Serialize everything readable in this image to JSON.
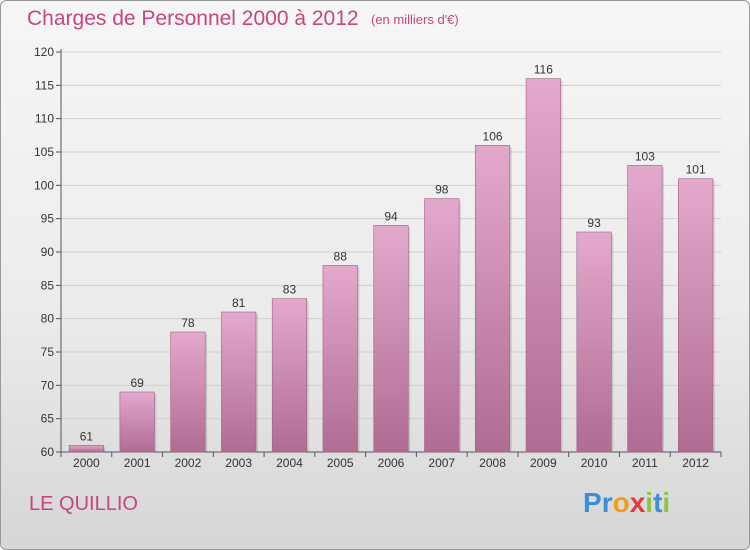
{
  "header": {
    "title": "Charges de Personnel 2000 à 2012",
    "subtitle": "(en milliers d'€)"
  },
  "footer": {
    "commune": "LE QUILLIO",
    "logo_letters": [
      {
        "ch": "P",
        "color": "#3a8fd8"
      },
      {
        "ch": "r",
        "color": "#3a8fd8"
      },
      {
        "ch": "o",
        "color": "#f39c12"
      },
      {
        "ch": "x",
        "color": "#e03a3a"
      },
      {
        "ch": "i",
        "color": "#8cc63f"
      },
      {
        "ch": "t",
        "color": "#3a8fd8"
      },
      {
        "ch": "i",
        "color": "#8cc63f"
      }
    ]
  },
  "colors": {
    "title": "#c8457f",
    "bar_top": "#e3a9cc",
    "bar_bottom": "#b06c93",
    "grid": "#cfcfcf",
    "axis": "#555555",
    "label": "#333333"
  },
  "chart_data": {
    "type": "bar",
    "title": "Charges de Personnel 2000 à 2012",
    "subtitle": "(en milliers d'€)",
    "categories": [
      "2000",
      "2001",
      "2002",
      "2003",
      "2004",
      "2005",
      "2006",
      "2007",
      "2008",
      "2009",
      "2010",
      "2011",
      "2012"
    ],
    "values": [
      61,
      69,
      78,
      81,
      83,
      88,
      94,
      98,
      106,
      116,
      93,
      103,
      101
    ],
    "ylim": [
      60,
      120
    ],
    "yticks": [
      60,
      65,
      70,
      75,
      80,
      85,
      90,
      95,
      100,
      105,
      110,
      115,
      120
    ],
    "grid": true,
    "xlabel": "",
    "ylabel": ""
  }
}
